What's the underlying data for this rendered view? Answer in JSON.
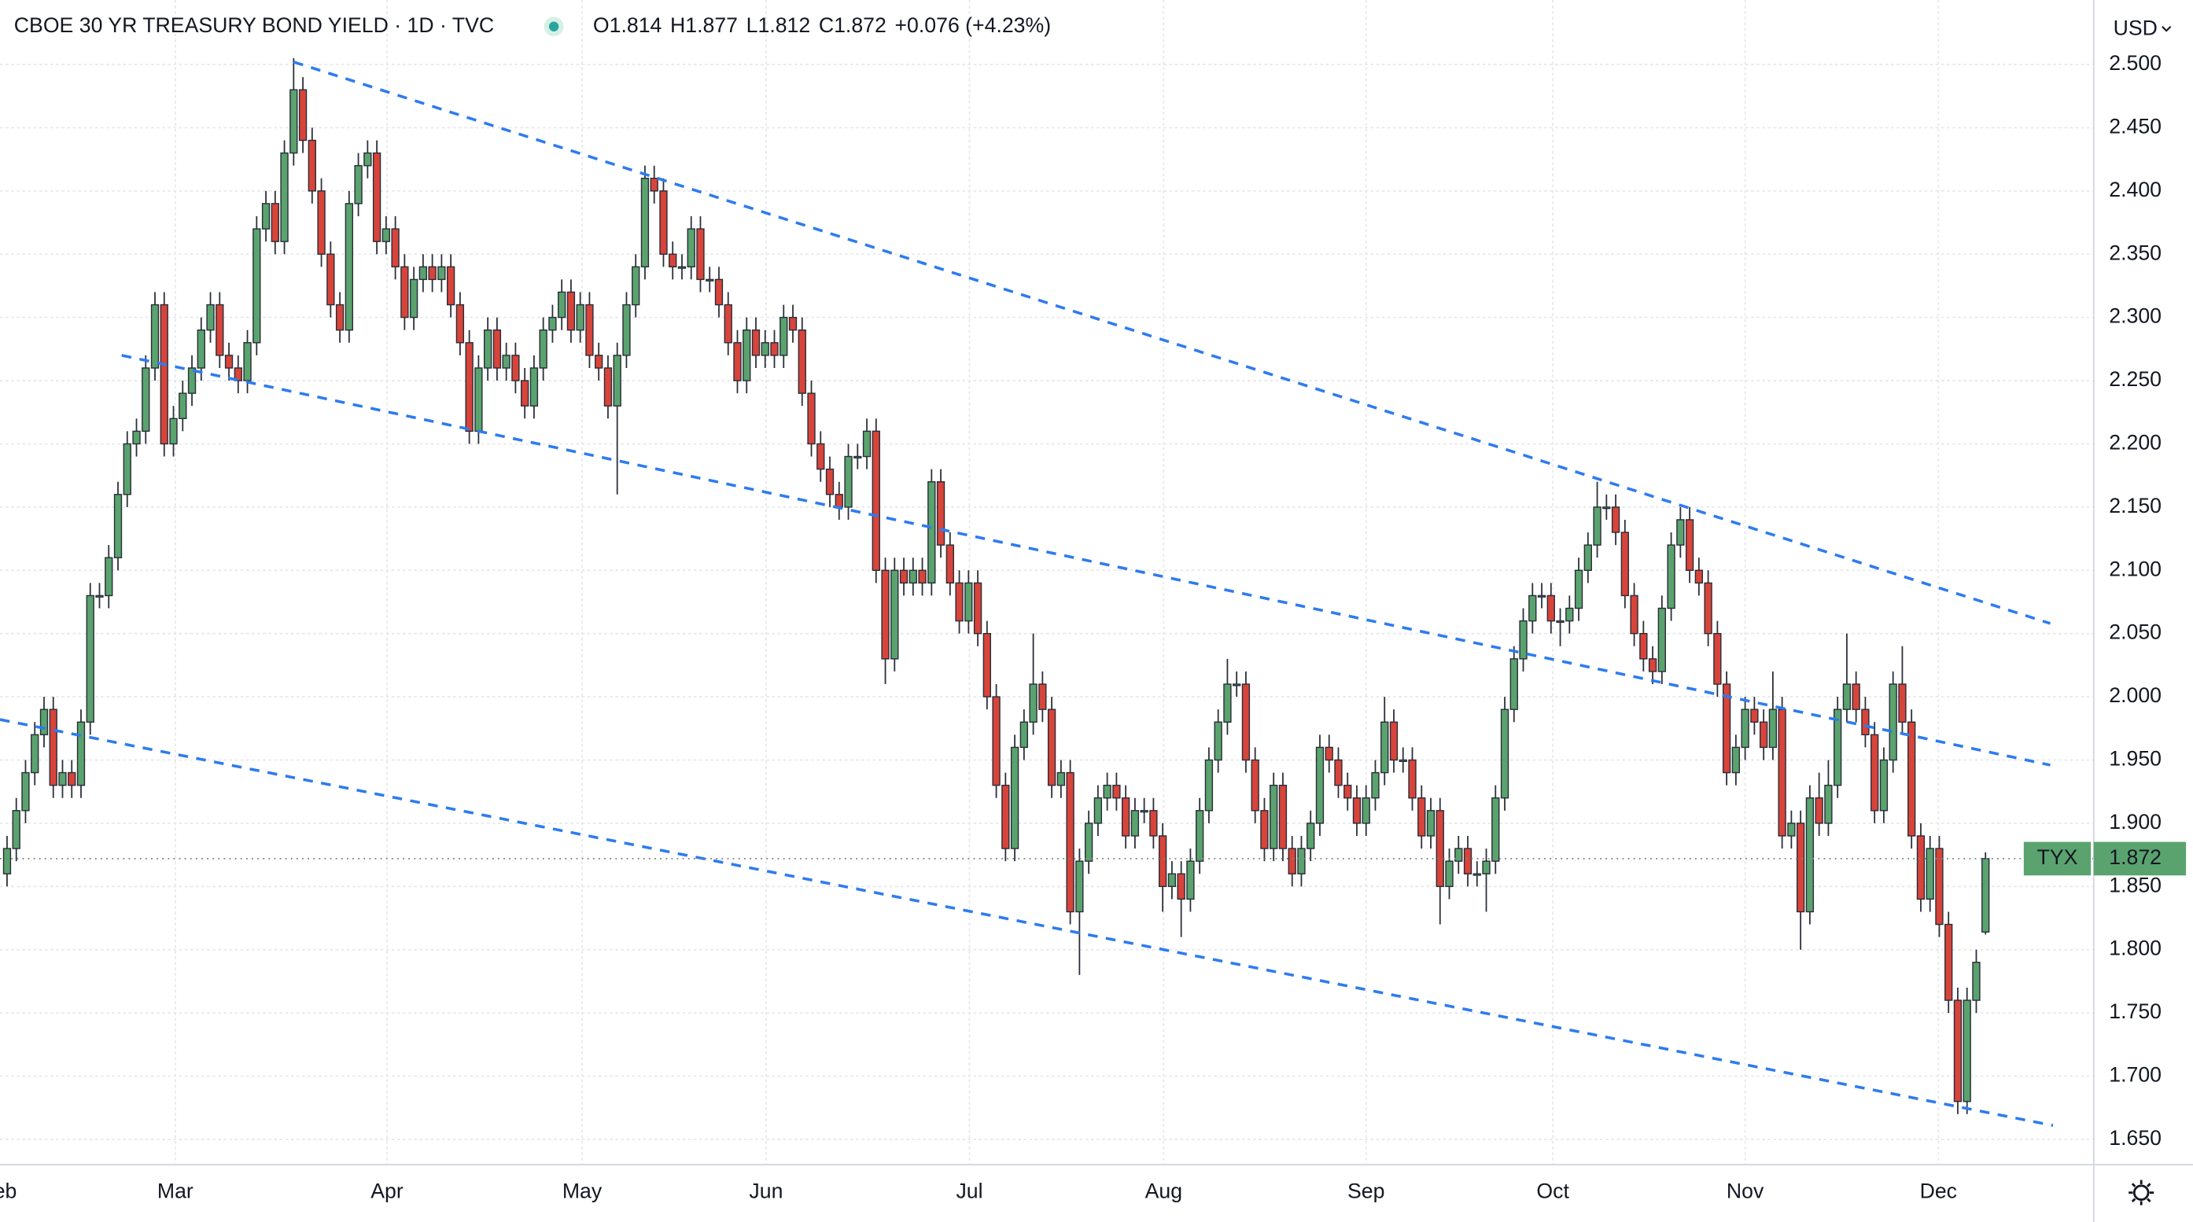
{
  "chart_data": {
    "type": "candlestick",
    "title": "CBOE 30 YR TREASURY BOND YIELD · 1D · TVC",
    "legend_values": [
      "O1.814",
      "H1.877",
      "L1.812",
      "C1.872",
      "+0.076 (+4.23%)"
    ],
    "currency": "USD",
    "symbol": "TYX",
    "up_color": "#5aa36e",
    "down_color": "#d8443a",
    "trendline_color": "#2e7bf0",
    "grid": true,
    "xlim": [
      -0.76,
      225.7
    ],
    "ylim": [
      1.63,
      2.551
    ],
    "yticks": [
      {
        "value": 1.65,
        "label": "1.650"
      },
      {
        "value": 1.7,
        "label": "1.700"
      },
      {
        "value": 1.75,
        "label": "1.750"
      },
      {
        "value": 1.8,
        "label": "1.800"
      },
      {
        "value": 1.85,
        "label": "1.850"
      },
      {
        "value": 1.9,
        "label": "1.900"
      },
      {
        "value": 1.95,
        "label": "1.950"
      },
      {
        "value": 2.0,
        "label": "2.000"
      },
      {
        "value": 2.05,
        "label": "2.050"
      },
      {
        "value": 2.1,
        "label": "2.100"
      },
      {
        "value": 2.15,
        "label": "2.150"
      },
      {
        "value": 2.2,
        "label": "2.200"
      },
      {
        "value": 2.25,
        "label": "2.250"
      },
      {
        "value": 2.3,
        "label": "2.300"
      },
      {
        "value": 2.35,
        "label": "2.350"
      },
      {
        "value": 2.4,
        "label": "2.400"
      },
      {
        "value": 2.45,
        "label": "2.450"
      },
      {
        "value": 2.5,
        "label": "2.500"
      }
    ],
    "xticks": [
      {
        "value": -0.9,
        "label": "Feb"
      },
      {
        "value": 18.2,
        "label": "Mar"
      },
      {
        "value": 41.1,
        "label": "Apr"
      },
      {
        "value": 62.2,
        "label": "May"
      },
      {
        "value": 82.1,
        "label": "Jun"
      },
      {
        "value": 104.1,
        "label": "Jul"
      },
      {
        "value": 125.1,
        "label": "Aug"
      },
      {
        "value": 147.0,
        "label": "Sep"
      },
      {
        "value": 167.2,
        "label": "Oct"
      },
      {
        "value": 188.0,
        "label": "Nov"
      },
      {
        "value": 208.9,
        "label": "Dec"
      }
    ],
    "trendlines": [
      {
        "x": [
          31.0,
          221.0
        ],
        "y": [
          2.502,
          2.058
        ]
      },
      {
        "x": [
          12.4,
          221.0
        ],
        "y": [
          2.27,
          1.946
        ]
      },
      {
        "x": [
          -0.76,
          221.3
        ],
        "y": [
          1.982,
          1.661
        ]
      }
    ],
    "open": [
      1.86,
      1.88,
      1.91,
      1.94,
      1.97,
      1.99,
      1.93,
      1.94,
      1.93,
      1.98,
      2.08,
      2.08,
      2.11,
      2.16,
      2.2,
      2.21,
      2.26,
      2.31,
      2.2,
      2.22,
      2.24,
      2.26,
      2.29,
      2.31,
      2.27,
      2.26,
      2.25,
      2.28,
      2.37,
      2.39,
      2.36,
      2.43,
      2.48,
      2.44,
      2.4,
      2.35,
      2.31,
      2.29,
      2.39,
      2.42,
      2.43,
      2.36,
      2.37,
      2.34,
      2.3,
      2.33,
      2.34,
      2.33,
      2.34,
      2.31,
      2.28,
      2.21,
      2.26,
      2.29,
      2.26,
      2.27,
      2.25,
      2.23,
      2.26,
      2.29,
      2.3,
      2.32,
      2.29,
      2.31,
      2.27,
      2.26,
      2.23,
      2.27,
      2.31,
      2.34,
      2.41,
      2.4,
      2.35,
      2.34,
      2.34,
      2.37,
      2.33,
      2.33,
      2.31,
      2.28,
      2.25,
      2.29,
      2.27,
      2.28,
      2.27,
      2.3,
      2.29,
      2.24,
      2.2,
      2.18,
      2.16,
      2.15,
      2.19,
      2.19,
      2.21,
      2.1,
      2.03,
      2.1,
      2.09,
      2.1,
      2.09,
      2.17,
      2.12,
      2.09,
      2.06,
      2.09,
      2.05,
      2.0,
      1.93,
      1.88,
      1.96,
      1.98,
      2.01,
      1.99,
      1.93,
      1.94,
      1.83,
      1.87,
      1.9,
      1.92,
      1.93,
      1.92,
      1.89,
      1.91,
      1.91,
      1.89,
      1.85,
      1.86,
      1.84,
      1.87,
      1.91,
      1.95,
      1.98,
      2.01,
      2.01,
      1.95,
      1.91,
      1.88,
      1.93,
      1.88,
      1.86,
      1.88,
      1.9,
      1.96,
      1.95,
      1.93,
      1.92,
      1.9,
      1.92,
      1.94,
      1.98,
      1.95,
      1.95,
      1.92,
      1.89,
      1.91,
      1.85,
      1.87,
      1.88,
      1.86,
      1.86,
      1.87,
      1.92,
      1.99,
      2.03,
      2.06,
      2.08,
      2.08,
      2.06,
      2.06,
      2.07,
      2.1,
      2.12,
      2.15,
      2.15,
      2.13,
      2.08,
      2.05,
      2.03,
      2.02,
      2.07,
      2.12,
      2.14,
      2.1,
      2.09,
      2.05,
      2.01,
      1.94,
      1.96,
      1.99,
      1.98,
      1.96,
      1.99,
      1.89,
      1.9,
      1.83,
      1.92,
      1.9,
      1.93,
      1.99,
      2.01,
      1.99,
      1.97,
      1.91,
      1.95,
      2.01,
      1.98,
      1.89,
      1.84,
      1.88,
      1.82,
      1.76,
      1.68,
      1.76,
      1.814
    ],
    "high": [
      1.89,
      1.92,
      1.95,
      1.98,
      2.0,
      2.0,
      1.95,
      1.95,
      1.99,
      2.09,
      2.09,
      2.12,
      2.17,
      2.21,
      2.22,
      2.27,
      2.32,
      2.32,
      2.23,
      2.25,
      2.27,
      2.3,
      2.32,
      2.32,
      2.28,
      2.27,
      2.29,
      2.38,
      2.4,
      2.4,
      2.44,
      2.505,
      2.49,
      2.45,
      2.41,
      2.36,
      2.32,
      2.4,
      2.43,
      2.44,
      2.44,
      2.38,
      2.38,
      2.35,
      2.34,
      2.35,
      2.35,
      2.35,
      2.35,
      2.32,
      2.29,
      2.27,
      2.3,
      2.3,
      2.28,
      2.28,
      2.26,
      2.27,
      2.3,
      2.31,
      2.33,
      2.33,
      2.32,
      2.32,
      2.28,
      2.27,
      2.28,
      2.32,
      2.35,
      2.42,
      2.42,
      2.41,
      2.36,
      2.35,
      2.38,
      2.38,
      2.34,
      2.34,
      2.32,
      2.29,
      2.3,
      2.3,
      2.29,
      2.29,
      2.31,
      2.31,
      2.3,
      2.25,
      2.21,
      2.19,
      2.17,
      2.2,
      2.2,
      2.22,
      2.22,
      2.11,
      2.11,
      2.11,
      2.11,
      2.11,
      2.18,
      2.18,
      2.13,
      2.1,
      2.1,
      2.1,
      2.06,
      2.01,
      1.94,
      1.97,
      1.99,
      2.05,
      2.02,
      2.0,
      1.95,
      1.95,
      1.88,
      1.91,
      1.93,
      1.94,
      1.94,
      1.93,
      1.92,
      1.92,
      1.92,
      1.9,
      1.87,
      1.87,
      1.88,
      1.92,
      1.96,
      1.99,
      2.03,
      2.02,
      2.02,
      1.96,
      1.92,
      1.94,
      1.94,
      1.89,
      1.89,
      1.91,
      1.97,
      1.97,
      1.96,
      1.94,
      1.93,
      1.93,
      1.95,
      2.0,
      1.99,
      1.96,
      1.96,
      1.93,
      1.92,
      1.92,
      1.88,
      1.89,
      1.89,
      1.87,
      1.88,
      1.93,
      2.0,
      2.04,
      2.07,
      2.09,
      2.09,
      2.09,
      2.07,
      2.08,
      2.11,
      2.13,
      2.17,
      2.16,
      2.16,
      2.14,
      2.09,
      2.06,
      2.04,
      2.08,
      2.13,
      2.15,
      2.15,
      2.11,
      2.1,
      2.06,
      2.02,
      1.97,
      2.0,
      2.0,
      1.99,
      2.02,
      2.0,
      1.91,
      1.91,
      1.93,
      1.94,
      1.95,
      2.0,
      2.05,
      2.02,
      2.0,
      1.98,
      1.96,
      2.02,
      2.04,
      1.99,
      1.9,
      1.89,
      1.89,
      1.83,
      1.77,
      1.77,
      1.8,
      1.877
    ],
    "low": [
      1.85,
      1.87,
      1.9,
      1.93,
      1.96,
      1.92,
      1.92,
      1.92,
      1.92,
      1.97,
      2.07,
      2.07,
      2.1,
      2.15,
      2.19,
      2.2,
      2.25,
      2.19,
      2.19,
      2.21,
      2.23,
      2.25,
      2.28,
      2.26,
      2.25,
      2.24,
      2.24,
      2.27,
      2.36,
      2.35,
      2.35,
      2.42,
      2.43,
      2.39,
      2.34,
      2.3,
      2.28,
      2.28,
      2.38,
      2.41,
      2.35,
      2.35,
      2.33,
      2.29,
      2.29,
      2.32,
      2.32,
      2.32,
      2.3,
      2.27,
      2.2,
      2.2,
      2.25,
      2.25,
      2.25,
      2.24,
      2.22,
      2.22,
      2.25,
      2.28,
      2.29,
      2.28,
      2.28,
      2.26,
      2.25,
      2.22,
      2.16,
      2.26,
      2.3,
      2.33,
      2.39,
      2.34,
      2.33,
      2.33,
      2.33,
      2.32,
      2.32,
      2.3,
      2.27,
      2.24,
      2.24,
      2.26,
      2.26,
      2.26,
      2.26,
      2.28,
      2.23,
      2.19,
      2.17,
      2.15,
      2.14,
      2.14,
      2.18,
      2.18,
      2.09,
      2.01,
      2.02,
      2.08,
      2.08,
      2.08,
      2.08,
      2.11,
      2.08,
      2.05,
      2.05,
      2.04,
      1.99,
      1.92,
      1.87,
      1.87,
      1.95,
      1.97,
      1.98,
      1.92,
      1.92,
      1.82,
      1.78,
      1.86,
      1.89,
      1.91,
      1.91,
      1.88,
      1.88,
      1.9,
      1.88,
      1.83,
      1.84,
      1.81,
      1.83,
      1.86,
      1.9,
      1.94,
      1.97,
      2.0,
      1.94,
      1.9,
      1.87,
      1.87,
      1.87,
      1.85,
      1.85,
      1.87,
      1.89,
      1.94,
      1.92,
      1.91,
      1.89,
      1.89,
      1.91,
      1.93,
      1.94,
      1.94,
      1.91,
      1.88,
      1.88,
      1.82,
      1.84,
      1.86,
      1.85,
      1.85,
      1.83,
      1.86,
      1.91,
      1.98,
      2.02,
      2.05,
      2.07,
      2.05,
      2.04,
      2.05,
      2.06,
      2.09,
      2.11,
      2.14,
      2.12,
      2.07,
      2.04,
      2.02,
      2.01,
      2.01,
      2.06,
      2.11,
      2.09,
      2.08,
      2.04,
      2.0,
      1.93,
      1.93,
      1.95,
      1.97,
      1.95,
      1.95,
      1.88,
      1.88,
      1.8,
      1.82,
      1.89,
      1.89,
      1.92,
      1.98,
      1.98,
      1.96,
      1.9,
      1.9,
      1.94,
      1.97,
      1.88,
      1.83,
      1.83,
      1.81,
      1.75,
      1.67,
      1.67,
      1.75,
      1.812
    ],
    "close": [
      1.88,
      1.91,
      1.94,
      1.97,
      1.99,
      1.93,
      1.94,
      1.93,
      1.98,
      2.08,
      2.08,
      2.11,
      2.16,
      2.2,
      2.21,
      2.26,
      2.31,
      2.2,
      2.22,
      2.24,
      2.26,
      2.29,
      2.31,
      2.27,
      2.26,
      2.25,
      2.28,
      2.37,
      2.39,
      2.36,
      2.43,
      2.48,
      2.44,
      2.4,
      2.35,
      2.31,
      2.29,
      2.39,
      2.42,
      2.43,
      2.36,
      2.37,
      2.34,
      2.3,
      2.33,
      2.34,
      2.33,
      2.34,
      2.31,
      2.28,
      2.21,
      2.26,
      2.29,
      2.26,
      2.27,
      2.25,
      2.23,
      2.26,
      2.29,
      2.3,
      2.32,
      2.29,
      2.31,
      2.27,
      2.26,
      2.23,
      2.27,
      2.31,
      2.34,
      2.41,
      2.4,
      2.35,
      2.34,
      2.34,
      2.37,
      2.33,
      2.33,
      2.31,
      2.28,
      2.25,
      2.29,
      2.27,
      2.28,
      2.27,
      2.3,
      2.29,
      2.24,
      2.2,
      2.18,
      2.16,
      2.15,
      2.19,
      2.19,
      2.21,
      2.1,
      2.03,
      2.1,
      2.09,
      2.1,
      2.09,
      2.17,
      2.12,
      2.09,
      2.06,
      2.09,
      2.05,
      2.0,
      1.93,
      1.88,
      1.96,
      1.98,
      2.01,
      1.99,
      1.93,
      1.94,
      1.83,
      1.87,
      1.9,
      1.92,
      1.93,
      1.92,
      1.89,
      1.91,
      1.91,
      1.89,
      1.85,
      1.86,
      1.84,
      1.87,
      1.91,
      1.95,
      1.98,
      2.01,
      2.01,
      1.95,
      1.91,
      1.88,
      1.93,
      1.88,
      1.86,
      1.88,
      1.9,
      1.96,
      1.95,
      1.93,
      1.92,
      1.9,
      1.92,
      1.94,
      1.98,
      1.95,
      1.95,
      1.92,
      1.89,
      1.91,
      1.85,
      1.87,
      1.88,
      1.86,
      1.86,
      1.87,
      1.92,
      1.99,
      2.03,
      2.06,
      2.08,
      2.08,
      2.06,
      2.06,
      2.07,
      2.1,
      2.12,
      2.15,
      2.15,
      2.13,
      2.08,
      2.05,
      2.03,
      2.02,
      2.07,
      2.12,
      2.14,
      2.1,
      2.09,
      2.05,
      2.01,
      1.94,
      1.96,
      1.99,
      1.98,
      1.96,
      1.99,
      1.89,
      1.9,
      1.83,
      1.92,
      1.9,
      1.93,
      1.99,
      2.01,
      1.99,
      1.97,
      1.91,
      1.95,
      2.01,
      1.98,
      1.89,
      1.84,
      1.88,
      1.82,
      1.76,
      1.68,
      1.76,
      1.79,
      1.872
    ]
  }
}
